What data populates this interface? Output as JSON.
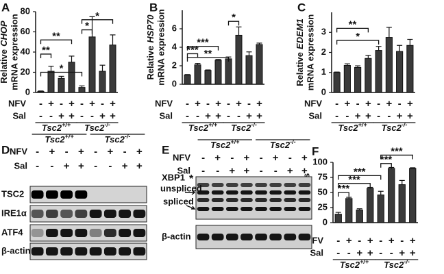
{
  "chart_data": [
    {
      "type": "bar",
      "panel": "A",
      "y_label": [
        "Relative",
        "CHOP",
        "mRNA expression"
      ],
      "values": [
        1,
        21,
        14,
        30,
        5,
        55,
        21,
        47
      ],
      "errors": [
        0.5,
        5,
        2,
        6,
        1.5,
        20,
        6,
        10
      ],
      "ylim": [
        0,
        80
      ],
      "yticks": [
        0,
        20,
        40,
        60,
        80
      ],
      "color": "#3a3a3a",
      "significance": [
        "**",
        "**",
        "*",
        "*",
        "*"
      ],
      "conditions": [
        {
          "name": "NFV",
          "values": [
            "-",
            "+",
            "-",
            "+",
            "-",
            "+",
            "-",
            "+"
          ]
        },
        {
          "name": "Sal",
          "values": [
            "-",
            "-",
            "+",
            "+",
            "-",
            "-",
            "+",
            "+"
          ]
        }
      ],
      "groups": [
        {
          "name": "Tsc2",
          "sup": "+/+"
        },
        {
          "name": "Tsc2",
          "sup": "-/-"
        }
      ]
    },
    {
      "type": "bar",
      "panel": "B",
      "y_label": [
        "Relative",
        "HSP70",
        "mRNA expression"
      ],
      "values": [
        1,
        2.1,
        1.5,
        2.6,
        2.75,
        5.3,
        3.1,
        4.3
      ],
      "errors": [
        0.05,
        0.15,
        0.05,
        0.08,
        0.2,
        0.9,
        0.4,
        0.15
      ],
      "ylim": [
        0,
        8
      ],
      "yticks": [
        0,
        2,
        4,
        6
      ],
      "color": "#3a3a3a",
      "significance": [
        "***",
        "***",
        "**",
        "*"
      ],
      "conditions": [
        {
          "name": "NFV",
          "values": [
            "-",
            "+",
            "-",
            "+",
            "-",
            "+",
            "-",
            "+"
          ]
        },
        {
          "name": "Sal",
          "values": [
            "-",
            "-",
            "+",
            "+",
            "-",
            "-",
            "+",
            "+"
          ]
        }
      ],
      "groups": [
        {
          "name": "Tsc2",
          "sup": "+/+"
        },
        {
          "name": "Tsc2",
          "sup": "-/-"
        }
      ]
    },
    {
      "type": "bar",
      "panel": "C",
      "y_label": [
        "Relative",
        "EDEM1",
        "mRNA expression"
      ],
      "values": [
        1,
        1.35,
        1.25,
        1.7,
        2.1,
        2.75,
        2.05,
        2.35
      ],
      "errors": [
        0.02,
        0.08,
        0.08,
        0.15,
        0.2,
        0.5,
        0.3,
        0.3
      ],
      "ylim": [
        0,
        4
      ],
      "yticks": [
        0,
        1,
        2,
        3
      ],
      "color": "#3a3a3a",
      "significance": [
        "**",
        "*"
      ],
      "conditions": [
        {
          "name": "NFV",
          "values": [
            "-",
            "+",
            "-",
            "+",
            "-",
            "+",
            "-",
            "+"
          ]
        },
        {
          "name": "Sal",
          "values": [
            "-",
            "-",
            "+",
            "+",
            "-",
            "-",
            "+",
            "+"
          ]
        }
      ],
      "groups": [
        {
          "name": "Tsc2",
          "sup": "+/+"
        },
        {
          "name": "Tsc2",
          "sup": "-/-"
        }
      ]
    },
    {
      "type": "bar",
      "panel": "F",
      "y_label": [
        "% XBP1s"
      ],
      "values": [
        14,
        40,
        21,
        57,
        46,
        90,
        63,
        90
      ],
      "errors": [
        3,
        2,
        2,
        1.5,
        6,
        1.5,
        7,
        1
      ],
      "ylim": [
        0,
        100
      ],
      "yticks": [
        0,
        25,
        50,
        75,
        100
      ],
      "color": "#3a3a3a",
      "significance": [
        "***",
        "***",
        "***",
        "***",
        "***"
      ],
      "conditions": [
        {
          "name": "NFV",
          "values": [
            "-",
            "+",
            "-",
            "+",
            "-",
            "+",
            "-",
            "+"
          ]
        },
        {
          "name": "Sal",
          "values": [
            "-",
            "-",
            "+",
            "+",
            "-",
            "-",
            "+",
            "+"
          ]
        }
      ],
      "groups": [
        {
          "name": "Tsc2",
          "sup": "+/+"
        },
        {
          "name": "Tsc2",
          "sup": "-/-"
        }
      ]
    }
  ],
  "blots": [
    {
      "panel": "D",
      "rows": [
        "TSC2",
        "IRE1α",
        "ATF4",
        "β-actin"
      ],
      "conditions": [
        {
          "name": "NFV",
          "values": [
            "-",
            "+",
            "-",
            "+",
            "-",
            "+",
            "-",
            "+"
          ]
        },
        {
          "name": "Sal",
          "values": [
            "-",
            "-",
            "+",
            "+",
            "-",
            "-",
            "+",
            "+"
          ]
        }
      ],
      "groups": [
        {
          "name": "Tsc2",
          "sup": "+/+"
        },
        {
          "name": "Tsc2",
          "sup": "-/-"
        }
      ]
    },
    {
      "panel": "E",
      "labels": [
        "XBP1",
        "unspliced",
        "spliced",
        "*",
        "β-actin"
      ],
      "conditions": [
        {
          "name": "NFV",
          "values": [
            "-",
            "+",
            "-",
            "+",
            "-",
            "+",
            "-",
            "+"
          ]
        },
        {
          "name": "Sal",
          "values": [
            "-",
            "-",
            "+",
            "+",
            "-",
            "-",
            "+",
            "+"
          ]
        }
      ],
      "groups": [
        {
          "name": "Tsc2",
          "sup": "+/+"
        },
        {
          "name": "Tsc2",
          "sup": "-/-"
        }
      ]
    }
  ]
}
